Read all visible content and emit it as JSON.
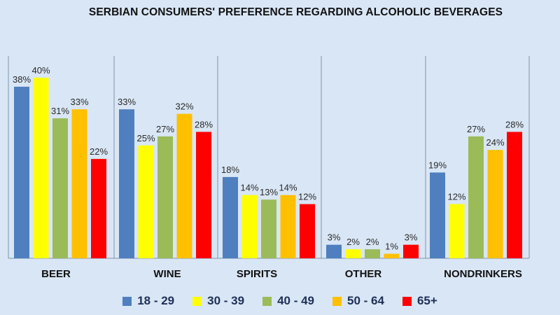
{
  "chart_data": {
    "type": "bar",
    "title": "SERBIAN CONSUMERS' PREFERENCE REGARDING ALCOHOLIC BEVERAGES",
    "categories": [
      "BEER",
      "WINE",
      "SPIRITS",
      "OTHER",
      "NONDRINKERS"
    ],
    "series": [
      {
        "name": "18 - 29",
        "color": "#4f7fbf",
        "values": [
          38,
          33,
          18,
          3,
          19
        ]
      },
      {
        "name": "30 - 39",
        "color": "#ffff00",
        "values": [
          40,
          25,
          14,
          2,
          12
        ]
      },
      {
        "name": "40 - 49",
        "color": "#9bbb59",
        "values": [
          31,
          27,
          13,
          2,
          27
        ]
      },
      {
        "name": "50 - 64",
        "color": "#ffc000",
        "values": [
          33,
          32,
          14,
          1,
          24
        ]
      },
      {
        "name": "65+",
        "color": "#ff0000",
        "values": [
          22,
          28,
          12,
          3,
          28
        ]
      }
    ],
    "value_suffix": "%",
    "ylim": [
      0,
      45
    ],
    "grid": false,
    "legend_position": "bottom"
  }
}
